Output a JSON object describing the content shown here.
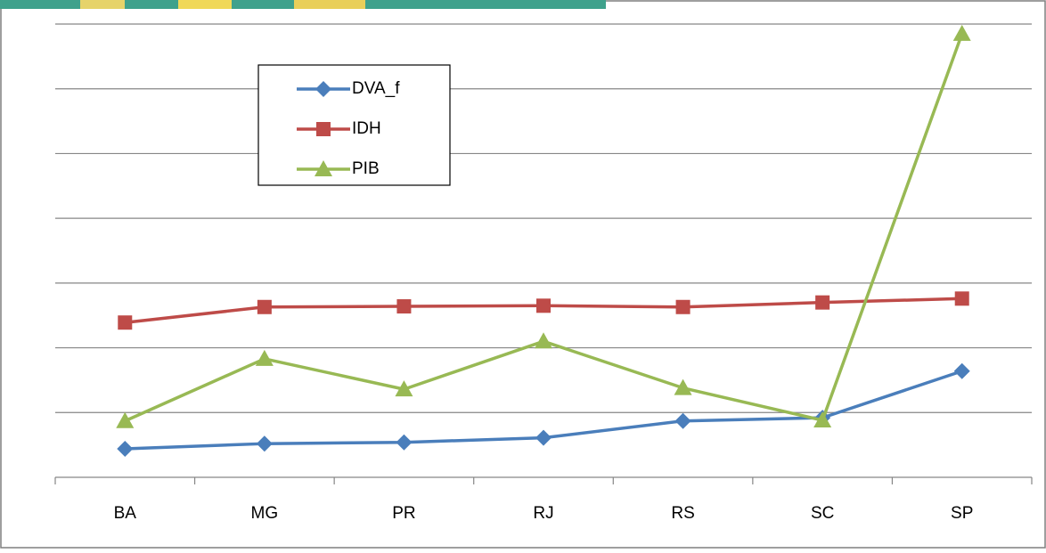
{
  "chart_data": {
    "type": "line",
    "categories": [
      "BA",
      "MG",
      "PR",
      "RJ",
      "RS",
      "SC",
      "SP"
    ],
    "series": [
      {
        "name": "DVA_f",
        "color": "#4a7ebb",
        "marker": "diamond",
        "values": [
          0.44,
          0.52,
          0.54,
          0.61,
          0.87,
          0.92,
          1.64
        ]
      },
      {
        "name": "IDH",
        "color": "#be4b48",
        "marker": "square",
        "values": [
          2.39,
          2.63,
          2.64,
          2.65,
          2.63,
          2.7,
          2.76
        ]
      },
      {
        "name": "PIB",
        "color": "#98b954",
        "marker": "triangle",
        "values": [
          0.87,
          1.83,
          1.36,
          2.1,
          1.38,
          0.88,
          6.85
        ]
      }
    ],
    "ylim": [
      0,
      7
    ],
    "yticks": [
      0,
      1,
      2,
      3,
      4,
      5,
      6,
      7
    ],
    "grid": true
  }
}
